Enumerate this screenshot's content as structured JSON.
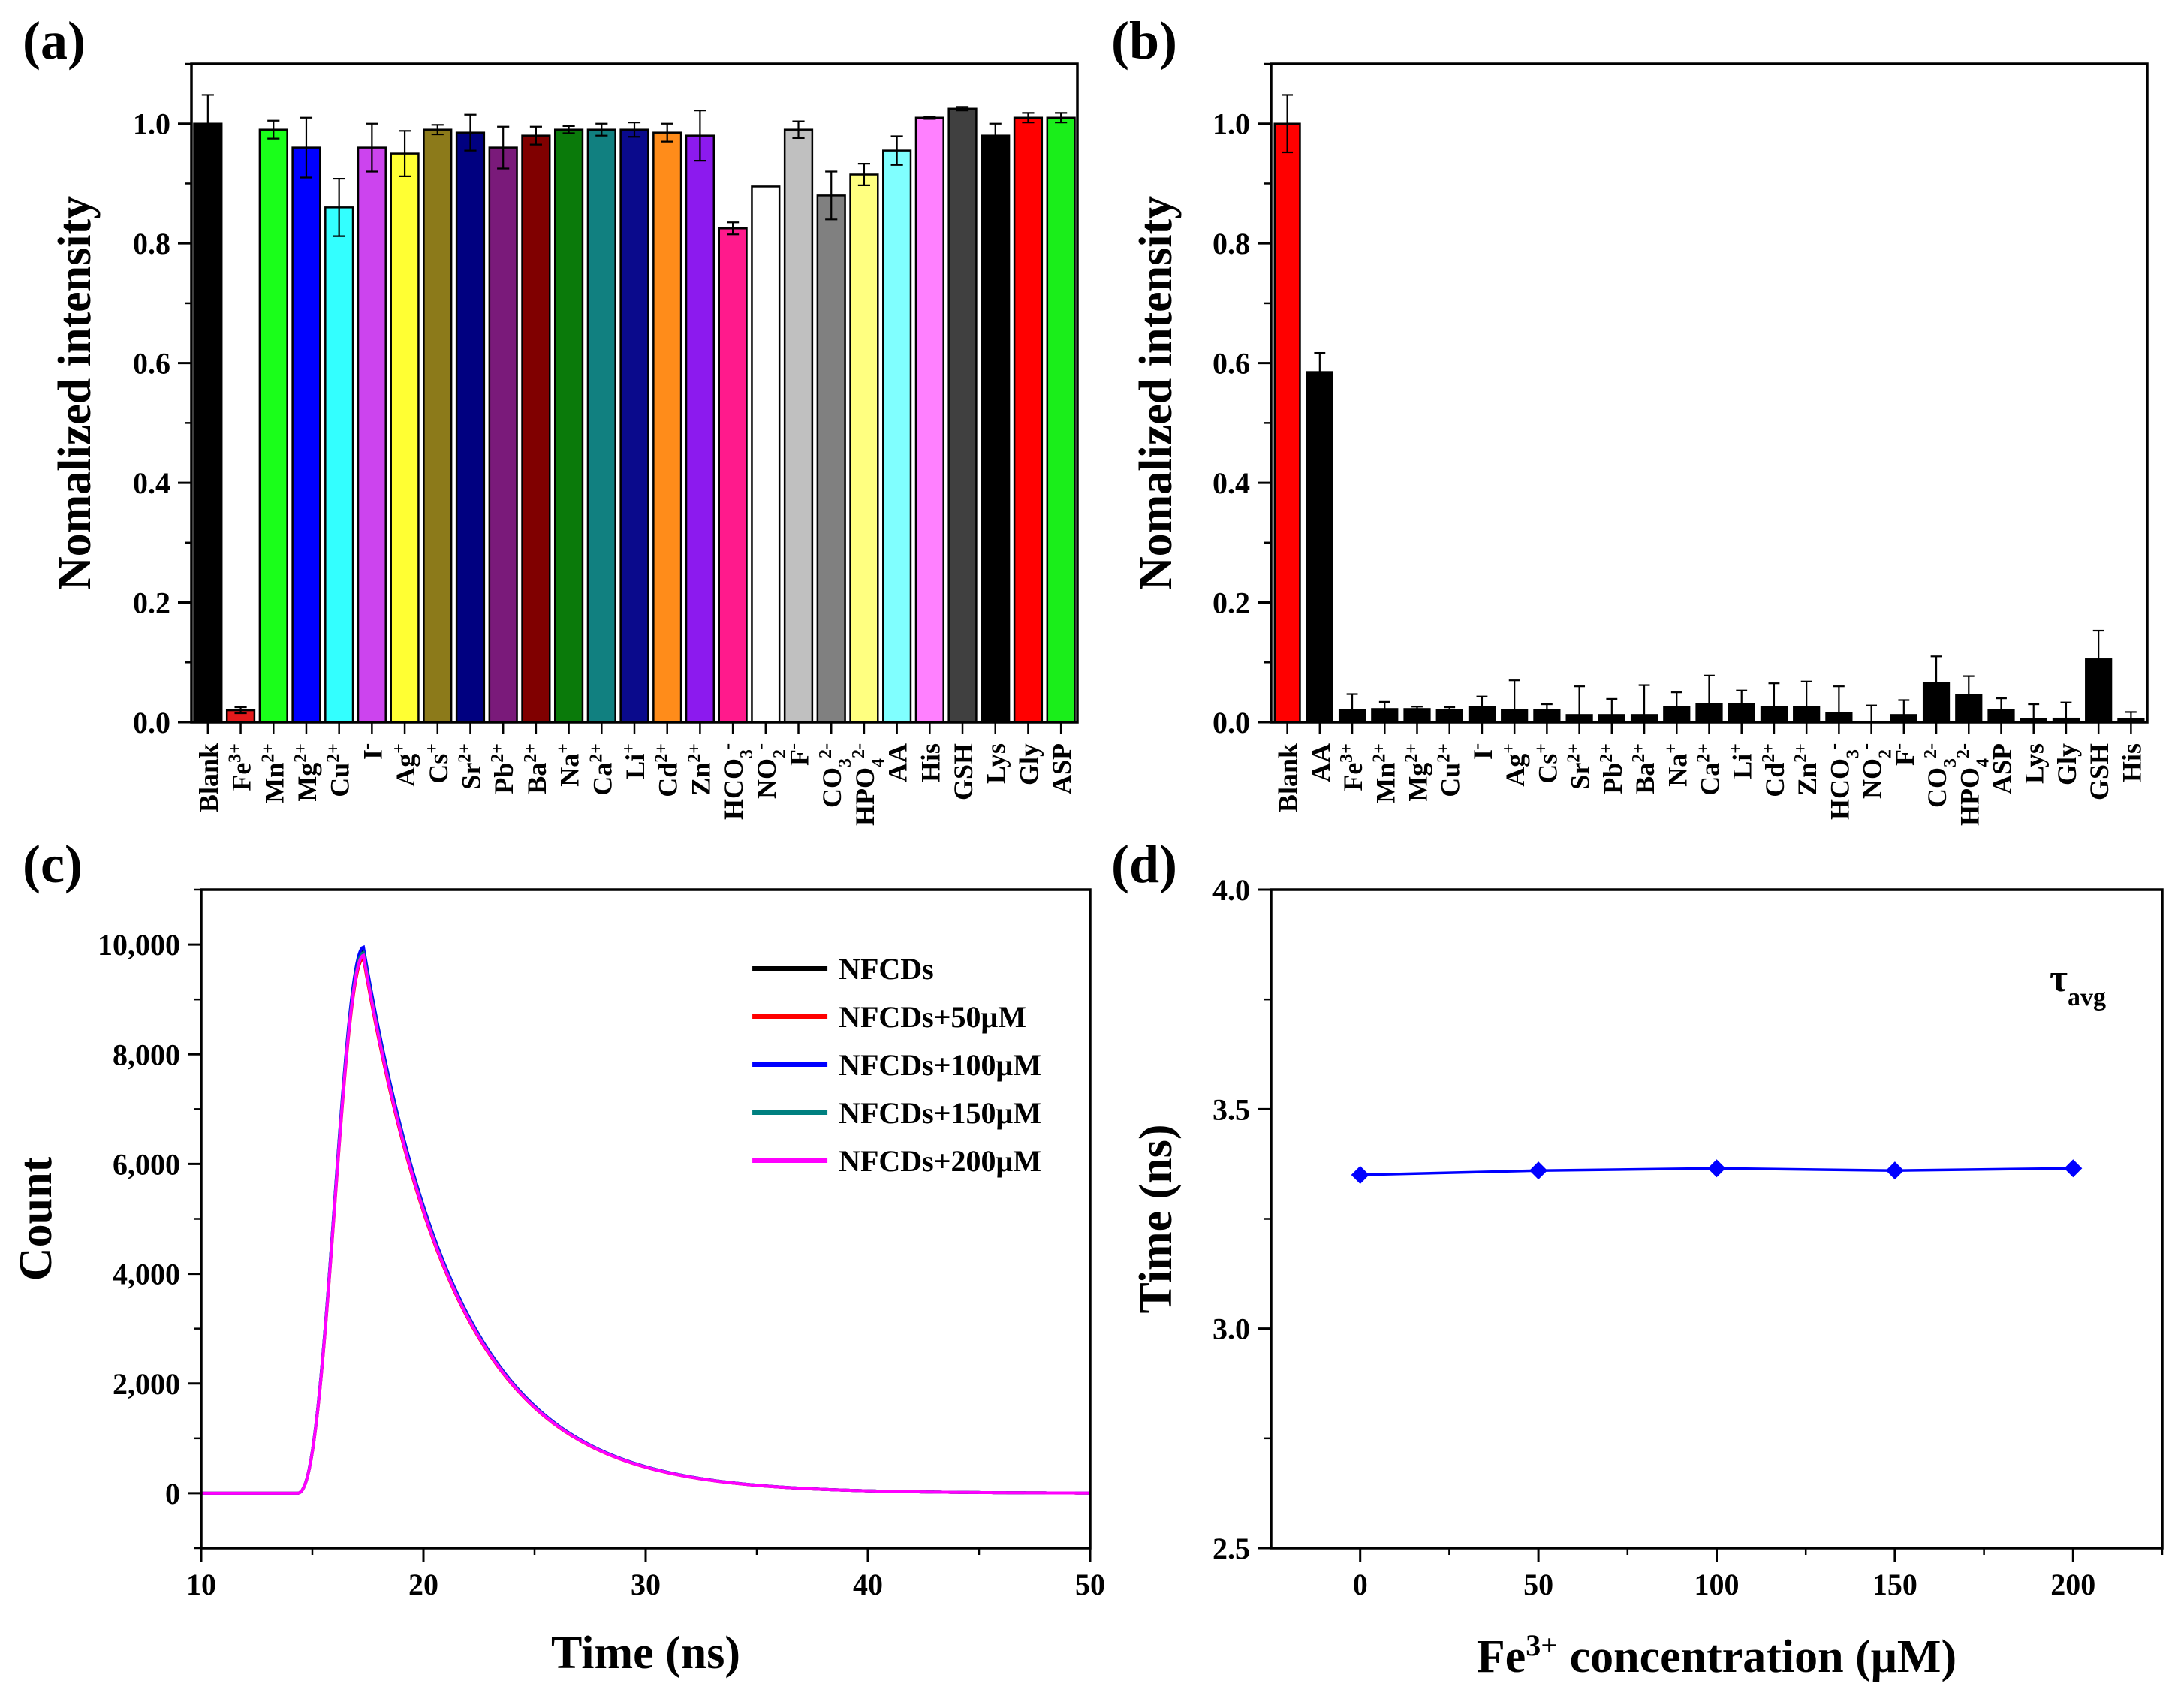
{
  "chart_data": [
    {
      "id": "a",
      "type": "bar",
      "panel_label": "(a)",
      "title": "",
      "xlabel": "",
      "ylabel": "Nomalized intensity",
      "ylim": [
        0,
        1.1
      ],
      "yticks": [
        "0.0",
        "0.2",
        "0.4",
        "0.6",
        "0.8",
        "1.0"
      ],
      "categories": [
        {
          "base": "Blank"
        },
        {
          "base": "Fe",
          "sup": "3+"
        },
        {
          "base": "Mn",
          "sup": "2+"
        },
        {
          "base": "Mg",
          "sup": "2+"
        },
        {
          "base": "Cu",
          "sup": "2+"
        },
        {
          "base": "I",
          "sup": "-"
        },
        {
          "base": "Ag",
          "sup": "+"
        },
        {
          "base": "Cs",
          "sup": "+"
        },
        {
          "base": "Sr",
          "sup": "2+"
        },
        {
          "base": "Pb",
          "sup": "2+"
        },
        {
          "base": "Ba",
          "sup": "2+"
        },
        {
          "base": "Na",
          "sup": "+"
        },
        {
          "base": "Ca",
          "sup": "2+"
        },
        {
          "base": "Li",
          "sup": "+"
        },
        {
          "base": "Cd",
          "sup": "2+"
        },
        {
          "base": "Zn",
          "sup": "2+"
        },
        {
          "base": "HCO",
          "sub": "3",
          "sup": "-"
        },
        {
          "base": "NO",
          "sub": "2",
          "sup": "-"
        },
        {
          "base": "F",
          "sup": "-"
        },
        {
          "base": "CO",
          "sub": "3",
          "sup": "2-"
        },
        {
          "base": "HPO",
          "sub": "4",
          "sup": "2-"
        },
        {
          "base": "AA"
        },
        {
          "base": "His"
        },
        {
          "base": "GSH"
        },
        {
          "base": "Lys"
        },
        {
          "base": "Gly"
        },
        {
          "base": "ASP"
        }
      ],
      "values": [
        1.0,
        0.02,
        0.99,
        0.96,
        0.86,
        0.96,
        0.95,
        0.99,
        0.985,
        0.96,
        0.98,
        0.99,
        0.99,
        0.99,
        0.985,
        0.98,
        0.825,
        0.895,
        0.99,
        0.88,
        0.915,
        0.955,
        1.01,
        1.025,
        0.98,
        1.01,
        1.01
      ],
      "errors": [
        0.048,
        0.005,
        0.015,
        0.05,
        0.048,
        0.04,
        0.038,
        0.008,
        0.03,
        0.035,
        0.015,
        0.006,
        0.01,
        0.012,
        0.015,
        0.042,
        0.01,
        0.0,
        0.014,
        0.04,
        0.018,
        0.024,
        0.002,
        0.003,
        0.02,
        0.008,
        0.008
      ],
      "colors": [
        "#000000",
        "#e41a1c",
        "#1aff1a",
        "#0000ff",
        "#33ffff",
        "#cc44ee",
        "#ffff33",
        "#8c7a1a",
        "#000080",
        "#7a1a7a",
        "#800000",
        "#0a7a0a",
        "#118080",
        "#0a0a8c",
        "#ff8c1a",
        "#8c1aee",
        "#ff1a8c",
        "#ffffff",
        "#c0c0c0",
        "#808080",
        "#ffff80",
        "#80ffff",
        "#ff80ff",
        "#404040",
        "#000000",
        "#ff0000",
        "#1aee1a"
      ]
    },
    {
      "id": "b",
      "type": "bar",
      "panel_label": "(b)",
      "title": "",
      "xlabel": "",
      "ylabel": "Nomalized intensity",
      "ylim": [
        0,
        1.1
      ],
      "yticks": [
        "0.0",
        "0.2",
        "0.4",
        "0.6",
        "0.8",
        "1.0"
      ],
      "categories": [
        {
          "base": "Blank"
        },
        {
          "base": "AA"
        },
        {
          "base": "Fe",
          "sup": "3+"
        },
        {
          "base": "Mn",
          "sup": "2+"
        },
        {
          "base": "Mg",
          "sup": "2+"
        },
        {
          "base": "Cu",
          "sup": "2+"
        },
        {
          "base": "I",
          "sup": "-"
        },
        {
          "base": "Ag",
          "sup": "+"
        },
        {
          "base": "Cs",
          "sup": "+"
        },
        {
          "base": "Sr",
          "sup": "2+"
        },
        {
          "base": "Pb",
          "sup": "2+"
        },
        {
          "base": "Ba",
          "sup": "2+"
        },
        {
          "base": "Na",
          "sup": "+"
        },
        {
          "base": "Ca",
          "sup": "2+"
        },
        {
          "base": "Li",
          "sup": "+"
        },
        {
          "base": "Cd",
          "sup": "2+"
        },
        {
          "base": "Zn",
          "sup": "2+"
        },
        {
          "base": "HCO",
          "sub": "3",
          "sup": "-"
        },
        {
          "base": "NO",
          "sub": "2",
          "sup": "-"
        },
        {
          "base": "F",
          "sup": "-"
        },
        {
          "base": "CO",
          "sub": "3",
          "sup": "2-"
        },
        {
          "base": "HPO",
          "sub": "4",
          "sup": "2-"
        },
        {
          "base": "ASP"
        },
        {
          "base": "Lys"
        },
        {
          "base": "Gly"
        },
        {
          "base": "GSH"
        },
        {
          "base": "His"
        }
      ],
      "values": [
        1.0,
        0.585,
        0.02,
        0.022,
        0.022,
        0.02,
        0.025,
        0.02,
        0.02,
        0.012,
        0.012,
        0.012,
        0.025,
        0.03,
        0.03,
        0.025,
        0.025,
        0.015,
        0.0,
        0.012,
        0.065,
        0.045,
        0.02,
        0.005,
        0.006,
        0.105,
        0.005
      ],
      "errors": [
        0.048,
        0.032,
        0.027,
        0.012,
        0.004,
        0.005,
        0.018,
        0.05,
        0.01,
        0.048,
        0.027,
        0.05,
        0.025,
        0.048,
        0.023,
        0.04,
        0.043,
        0.045,
        0.028,
        0.025,
        0.045,
        0.032,
        0.02,
        0.025,
        0.027,
        0.048,
        0.012
      ],
      "colors": [
        "#ff0000",
        "#000000",
        "#000000",
        "#000000",
        "#000000",
        "#000000",
        "#000000",
        "#000000",
        "#000000",
        "#000000",
        "#000000",
        "#000000",
        "#000000",
        "#000000",
        "#000000",
        "#000000",
        "#000000",
        "#000000",
        "#000000",
        "#000000",
        "#000000",
        "#000000",
        "#000000",
        "#000000",
        "#000000",
        "#000000",
        "#000000"
      ]
    },
    {
      "id": "c",
      "type": "line",
      "panel_label": "(c)",
      "title": "",
      "xlabel": "Time (ns)",
      "ylabel": "Count",
      "xlim": [
        10,
        50
      ],
      "ylim": [
        -1000,
        11000
      ],
      "xticks": [
        "10",
        "20",
        "30",
        "40",
        "50"
      ],
      "yticks": [
        "0",
        "2,000",
        "4,000",
        "6,000",
        "8,000",
        "10,000"
      ],
      "legend_position": "top-right",
      "decay_model": {
        "onset_ns": 14.3,
        "peak_ns": 17.3,
        "rise_shape_power": 2.5,
        "decay_tau_ns": 4.2
      },
      "series": [
        {
          "name": "NFCDs",
          "color": "#000000",
          "peak": 9900
        },
        {
          "name": "NFCDs+50μM",
          "color": "#ff0000",
          "peak": 9750
        },
        {
          "name": "NFCDs+100μM",
          "color": "#0000ff",
          "peak": 9950
        },
        {
          "name": "NFCDs+150μM",
          "color": "#008080",
          "peak": 9850
        },
        {
          "name": "NFCDs+200μM",
          "color": "#ff00ff",
          "peak": 9800
        }
      ]
    },
    {
      "id": "d",
      "type": "line",
      "panel_label": "(d)",
      "title": "",
      "xlabel_parts": {
        "base": "Fe",
        "sup": "3+",
        "rest": " concentration (μM)"
      },
      "ylabel": "Time (ns)",
      "annotation": {
        "base": "τ",
        "sub": "avg"
      },
      "xlim": [
        -25,
        225
      ],
      "ylim": [
        2.5,
        4.0
      ],
      "xticks": [
        "0",
        "50",
        "100",
        "150",
        "200"
      ],
      "yticks": [
        "2.5",
        "3.0",
        "3.5",
        "4.0"
      ],
      "series": [
        {
          "name": "τavg",
          "color": "#0000ff",
          "x": [
            0,
            50,
            100,
            150,
            200
          ],
          "y": [
            3.35,
            3.36,
            3.365,
            3.36,
            3.365
          ]
        }
      ]
    }
  ]
}
